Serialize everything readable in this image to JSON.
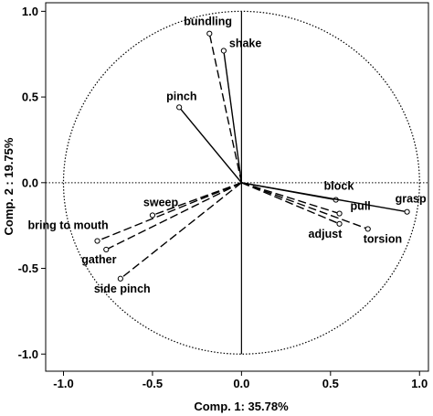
{
  "chart_data": {
    "type": "scatter",
    "xlabel": "Comp. 1: 35.78%",
    "ylabel": "Comp. 2 : 19.75%",
    "xlim": [
      -1.1,
      1.05
    ],
    "ylim": [
      -1.1,
      1.05
    ],
    "x_ticks": [
      "-1.0",
      "-0.5",
      "0.0",
      "0.5",
      "1.0"
    ],
    "y_ticks": [
      "-1.0",
      "-0.5",
      "0.0",
      "0.5",
      "1.0"
    ],
    "unit_circle": true,
    "points": [
      {
        "label": "bundling",
        "x": -0.18,
        "y": 0.87,
        "line": "dashed"
      },
      {
        "label": "shake",
        "x": -0.1,
        "y": 0.77,
        "line": "solid"
      },
      {
        "label": "pinch",
        "x": -0.35,
        "y": 0.44,
        "line": "solid"
      },
      {
        "label": "sweep",
        "x": -0.5,
        "y": -0.19,
        "line": "dashed"
      },
      {
        "label": "bring to mouth",
        "x": -0.81,
        "y": -0.34,
        "line": "dashed"
      },
      {
        "label": "gather",
        "x": -0.76,
        "y": -0.39,
        "line": "dashed"
      },
      {
        "label": "side pinch",
        "x": -0.68,
        "y": -0.56,
        "line": "dashed"
      },
      {
        "label": "block",
        "x": 0.53,
        "y": -0.1,
        "line": "solid"
      },
      {
        "label": "pull",
        "x": 0.55,
        "y": -0.18,
        "line": "dashed"
      },
      {
        "label": "adjust",
        "x": 0.55,
        "y": -0.24,
        "line": "dashed"
      },
      {
        "label": "torsion",
        "x": 0.71,
        "y": -0.27,
        "line": "dashed"
      },
      {
        "label": "grasp",
        "x": 0.93,
        "y": -0.17,
        "line": "solid"
      }
    ]
  }
}
